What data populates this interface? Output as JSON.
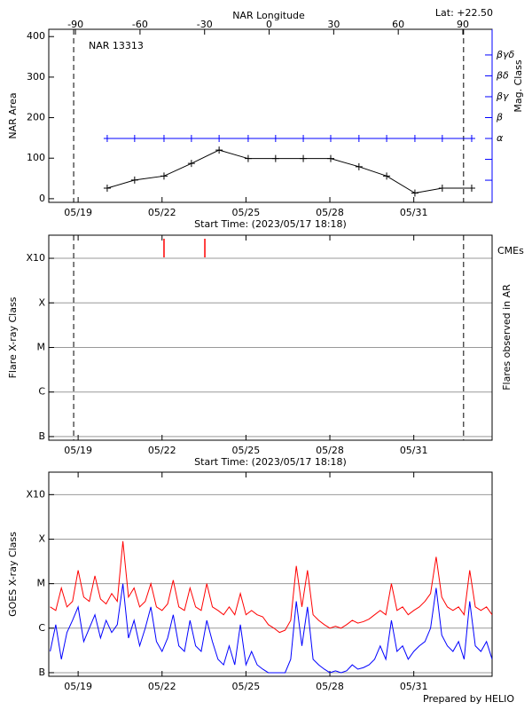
{
  "chart_data": [
    {
      "type": "line",
      "title": "NAR 13313",
      "annotation": "Lat: +22.50",
      "xlabel": "Start Time: (2023/05/17 18:18)",
      "x2label": "NAR Longitude",
      "ylabel": "NAR Area",
      "y2label": "Mag. Class",
      "xlim": [
        -1.05,
        14.8
      ],
      "xticks": [
        {
          "value": 0,
          "label": "05/19"
        },
        {
          "value": 3,
          "label": "05/22"
        },
        {
          "value": 6,
          "label": "05/25"
        },
        {
          "value": 9,
          "label": "05/28"
        },
        {
          "value": 12,
          "label": "05/31"
        }
      ],
      "x2lim": [
        -102.4,
        103.6
      ],
      "x2ticks": [
        -90,
        -60,
        -30,
        0,
        30,
        60,
        90
      ],
      "ylim": [
        -9,
        418
      ],
      "yticks": [
        0,
        100,
        200,
        300,
        400
      ],
      "y2lim": [
        -1.06,
        7.23
      ],
      "y2ticks": [
        {
          "value": 0,
          "label": null
        },
        {
          "value": 1,
          "label": null
        },
        {
          "value": 2,
          "label": "α"
        },
        {
          "value": 3,
          "label": "β"
        },
        {
          "value": 4,
          "label": "βγ"
        },
        {
          "value": 5,
          "label": "βδ"
        },
        {
          "value": 6,
          "label": "βγδ"
        }
      ],
      "y2color": "#0000ff",
      "markers": true,
      "dashed_lines": [
        -0.16,
        13.78
      ],
      "x": [
        1.04,
        2.02,
        3.07,
        4.05,
        5.04,
        6.08,
        7.06,
        8.05,
        9.03,
        10.04,
        11.03,
        12.04,
        13.02,
        14.07
      ],
      "series": [
        {
          "color": "#000000",
          "values": [
            26,
            46,
            56,
            87,
            120,
            99,
            99,
            99,
            99,
            79,
            56,
            14,
            26,
            26
          ]
        },
        {
          "color": "#0000ff",
          "axis": "y2",
          "values": [
            2,
            2,
            2,
            2,
            2,
            2,
            2,
            2,
            2,
            2,
            2,
            2,
            2,
            2
          ]
        }
      ]
    },
    {
      "type": "event",
      "xlabel": "Start Time: (2023/05/17 18:18)",
      "ylabel": "Flare X-ray Class",
      "y2label": "Flares observed in AR",
      "xlim": [
        -1.05,
        14.8
      ],
      "xticks": [
        {
          "value": 0,
          "label": "05/19"
        },
        {
          "value": 3,
          "label": "05/22"
        },
        {
          "value": 6,
          "label": "05/25"
        },
        {
          "value": 9,
          "label": "05/28"
        },
        {
          "value": 12,
          "label": "05/31"
        }
      ],
      "log_scale": true,
      "grid": true,
      "ylim": [
        8.3e-08,
        0.0033
      ],
      "yticks": [
        {
          "value": 1e-07,
          "label": "B"
        },
        {
          "value": 1e-06,
          "label": "C"
        },
        {
          "value": 1e-05,
          "label": "M"
        },
        {
          "value": 0.0001,
          "label": "X"
        },
        {
          "value": 0.001,
          "label": "X10"
        }
      ],
      "dashed_lines": [
        -0.16,
        13.78
      ],
      "events": {
        "name": "CMEs",
        "color": "#ff0000",
        "x": [
          3.07,
          4.53
        ]
      }
    },
    {
      "type": "line",
      "ylabel": "GOES X-ray Class",
      "footer": "Prepared by HELIO",
      "xlim": [
        -1.05,
        14.8
      ],
      "xticks": [
        {
          "value": 0,
          "label": "05/19"
        },
        {
          "value": 3,
          "label": "05/22"
        },
        {
          "value": 6,
          "label": "05/25"
        },
        {
          "value": 9,
          "label": "05/28"
        },
        {
          "value": 12,
          "label": "05/31"
        }
      ],
      "log_scale": true,
      "grid": true,
      "ylim": [
        8.3e-08,
        0.0032
      ],
      "yticks": [
        {
          "value": 1e-07,
          "label": "B"
        },
        {
          "value": 1e-06,
          "label": "C"
        },
        {
          "value": 1e-05,
          "label": "M"
        },
        {
          "value": 0.0001,
          "label": "X"
        },
        {
          "value": 0.001,
          "label": "X10"
        }
      ],
      "x": [
        -1.0,
        -0.8,
        -0.6,
        -0.4,
        -0.2,
        0.0,
        0.2,
        0.4,
        0.6,
        0.8,
        1.0,
        1.2,
        1.4,
        1.6,
        1.8,
        2.0,
        2.2,
        2.4,
        2.6,
        2.8,
        3.0,
        3.2,
        3.4,
        3.6,
        3.8,
        4.0,
        4.2,
        4.4,
        4.6,
        4.8,
        5.0,
        5.2,
        5.4,
        5.6,
        5.8,
        6.0,
        6.2,
        6.4,
        6.6,
        6.8,
        7.0,
        7.2,
        7.4,
        7.6,
        7.8,
        8.0,
        8.2,
        8.4,
        8.6,
        8.8,
        9.0,
        9.2,
        9.4,
        9.6,
        9.8,
        10.0,
        10.2,
        10.4,
        10.6,
        10.8,
        11.0,
        11.2,
        11.4,
        11.6,
        11.8,
        12.0,
        12.2,
        12.4,
        12.6,
        12.8,
        13.0,
        13.2,
        13.4,
        13.6,
        13.8,
        14.0,
        14.2,
        14.4,
        14.6,
        14.8
      ],
      "series": [
        {
          "color": "#ff0000",
          "values": [
            3e-06,
            2.5e-06,
            8e-06,
            3e-06,
            4e-06,
            2e-05,
            5e-06,
            4e-06,
            1.5e-05,
            4.5e-06,
            3.5e-06,
            6e-06,
            4e-06,
            9e-05,
            5e-06,
            8e-06,
            3e-06,
            4e-06,
            1e-05,
            3e-06,
            2.5e-06,
            3.5e-06,
            1.2e-05,
            3e-06,
            2.5e-06,
            8e-06,
            3e-06,
            2.5e-06,
            1e-05,
            3e-06,
            2.5e-06,
            2e-06,
            3e-06,
            2e-06,
            6e-06,
            2e-06,
            2.5e-06,
            2e-06,
            1.8e-06,
            1.2e-06,
            1e-06,
            8e-07,
            9e-07,
            1.5e-06,
            2.5e-05,
            3e-06,
            2e-05,
            2e-06,
            1.5e-06,
            1.2e-06,
            1e-06,
            1.1e-06,
            1e-06,
            1.2e-06,
            1.5e-06,
            1.3e-06,
            1.4e-06,
            1.6e-06,
            2e-06,
            2.5e-06,
            2e-06,
            1e-05,
            2.5e-06,
            3e-06,
            2e-06,
            2.5e-06,
            3e-06,
            4e-06,
            6e-06,
            4e-05,
            5e-06,
            3e-06,
            2.5e-06,
            3e-06,
            2e-06,
            2e-05,
            3e-06,
            2.5e-06,
            3e-06,
            2e-06
          ]
        },
        {
          "color": "#0000ff",
          "values": [
            3e-07,
            1.2e-06,
            2e-07,
            8e-07,
            1.5e-06,
            3e-06,
            5e-07,
            1e-06,
            2e-06,
            6e-07,
            1.5e-06,
            8e-07,
            1.2e-06,
            1e-05,
            6e-07,
            1.5e-06,
            4e-07,
            1e-06,
            3e-06,
            5e-07,
            3e-07,
            6e-07,
            2e-06,
            4e-07,
            3e-07,
            1.5e-06,
            4e-07,
            3e-07,
            1.5e-06,
            5e-07,
            2e-07,
            1.5e-07,
            4e-07,
            1.5e-07,
            1.2e-06,
            1.5e-07,
            3e-07,
            1.5e-07,
            1.2e-07,
            1e-07,
            1e-07,
            1e-07,
            1e-07,
            2e-07,
            4e-06,
            4e-07,
            3e-06,
            2e-07,
            1.5e-07,
            1.2e-07,
            1e-07,
            1.1e-07,
            1e-07,
            1.1e-07,
            1.5e-07,
            1.2e-07,
            1.3e-07,
            1.5e-07,
            2e-07,
            4e-07,
            2e-07,
            1.5e-06,
            3e-07,
            4e-07,
            2e-07,
            3e-07,
            4e-07,
            5e-07,
            1e-06,
            8e-06,
            7e-07,
            4e-07,
            3e-07,
            5e-07,
            2e-07,
            4e-06,
            4e-07,
            3e-07,
            5e-07,
            2e-07
          ]
        }
      ]
    }
  ]
}
